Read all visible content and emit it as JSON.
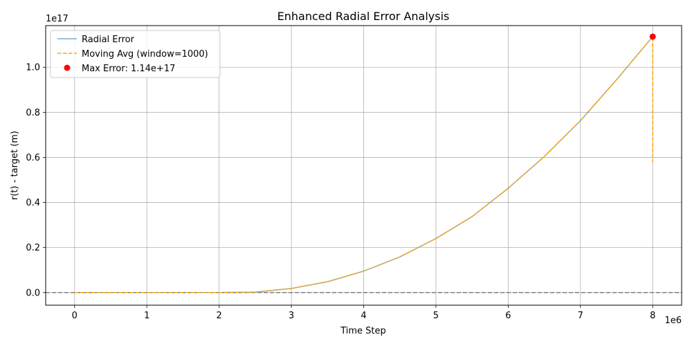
{
  "chart_data": {
    "type": "line",
    "title": "Enhanced Radial Error Analysis",
    "xlabel": "Time Step",
    "ylabel": "r(t) - target (m)",
    "x_offset_text": "1e6",
    "y_offset_text": "1e17",
    "xlim": [
      -400000,
      8400000
    ],
    "ylim": [
      -0.056,
      1.185
    ],
    "x_ticks": [
      0,
      1000000,
      2000000,
      3000000,
      4000000,
      5000000,
      6000000,
      7000000,
      8000000
    ],
    "x_tick_labels": [
      "0",
      "1",
      "2",
      "3",
      "4",
      "5",
      "6",
      "7",
      "8"
    ],
    "y_ticks": [
      0.0,
      0.2,
      0.4,
      0.6,
      0.8,
      1.0
    ],
    "y_tick_labels": [
      "0.0",
      "0.2",
      "0.4",
      "0.6",
      "0.8",
      "1.0"
    ],
    "grid": true,
    "legend_position": "upper left",
    "reference_line": {
      "y": 0,
      "color": "#808080",
      "style": "dashed"
    },
    "series": [
      {
        "name": "Radial Error",
        "kind": "line",
        "color": "#1f77b4",
        "x": [
          0,
          1000000,
          2000000,
          2500000,
          3000000,
          3500000,
          4000000,
          4500000,
          5000000,
          5500000,
          6000000,
          6500000,
          7000000,
          7500000,
          8000000
        ],
        "y": [
          0.0,
          0.0,
          0.0,
          0.002,
          0.018,
          0.048,
          0.095,
          0.158,
          0.24,
          0.337,
          0.463,
          0.604,
          0.763,
          0.945,
          1.136
        ]
      },
      {
        "name": "Moving Avg (window=1000)",
        "kind": "dashed",
        "color": "#ffa500",
        "x": [
          0,
          1000000,
          2000000,
          2500000,
          3000000,
          3500000,
          4000000,
          4500000,
          5000000,
          5500000,
          6000000,
          6500000,
          7000000,
          7500000,
          8000000,
          8000000
        ],
        "y": [
          0.0,
          0.0,
          0.0,
          0.002,
          0.018,
          0.048,
          0.095,
          0.158,
          0.24,
          0.337,
          0.463,
          0.604,
          0.763,
          0.945,
          1.136,
          0.58
        ]
      },
      {
        "name": "Max Error: 1.14e+17",
        "kind": "scatter",
        "color": "#ff0000",
        "x": [
          8000000
        ],
        "y": [
          1.136
        ]
      }
    ]
  }
}
